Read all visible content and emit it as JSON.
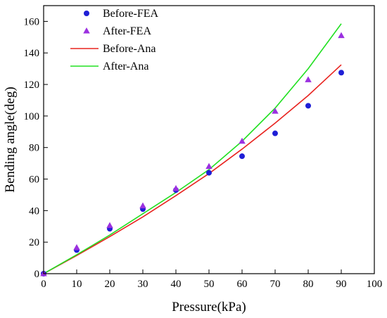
{
  "chart_data": {
    "type": "scatter",
    "title": "",
    "xlabel": "Pressure(kPa)",
    "ylabel": "Bending angle(deg)",
    "xlim": [
      0,
      100
    ],
    "ylim": [
      0,
      170
    ],
    "xticks": [
      0,
      10,
      20,
      30,
      40,
      50,
      60,
      70,
      80,
      90,
      100
    ],
    "yticks": [
      0,
      20,
      40,
      60,
      80,
      100,
      120,
      140,
      160
    ],
    "grid": false,
    "legend_position": "top-left",
    "series": [
      {
        "name": "Before-FEA",
        "kind": "scatter",
        "marker": "circle",
        "color": "#1f1fd6",
        "x": [
          0,
          10,
          20,
          30,
          40,
          50,
          60,
          70,
          80,
          90
        ],
        "y": [
          0,
          15,
          28.5,
          41,
          53,
          64,
          74.5,
          89,
          106.5,
          127.5
        ]
      },
      {
        "name": "After-FEA",
        "kind": "scatter",
        "marker": "triangle",
        "color": "#9b30e0",
        "x": [
          0,
          10,
          20,
          30,
          40,
          50,
          60,
          70,
          80,
          90
        ],
        "y": [
          0,
          16.5,
          30.5,
          43,
          54,
          68,
          84,
          103,
          123,
          151
        ]
      },
      {
        "name": "Before-Ana",
        "kind": "line",
        "color": "#e8231f",
        "x": [
          0,
          10,
          20,
          30,
          40,
          50,
          60,
          70,
          80,
          90
        ],
        "y": [
          0,
          11.5,
          23.5,
          36,
          49.5,
          63.5,
          79,
          95.5,
          113,
          132.5
        ]
      },
      {
        "name": "After-Ana",
        "kind": "line",
        "color": "#22e022",
        "x": [
          0,
          10,
          20,
          30,
          40,
          50,
          60,
          70,
          80,
          90
        ],
        "y": [
          0,
          12,
          24.5,
          38,
          51.5,
          66,
          84,
          105,
          130,
          158.5
        ]
      }
    ]
  }
}
